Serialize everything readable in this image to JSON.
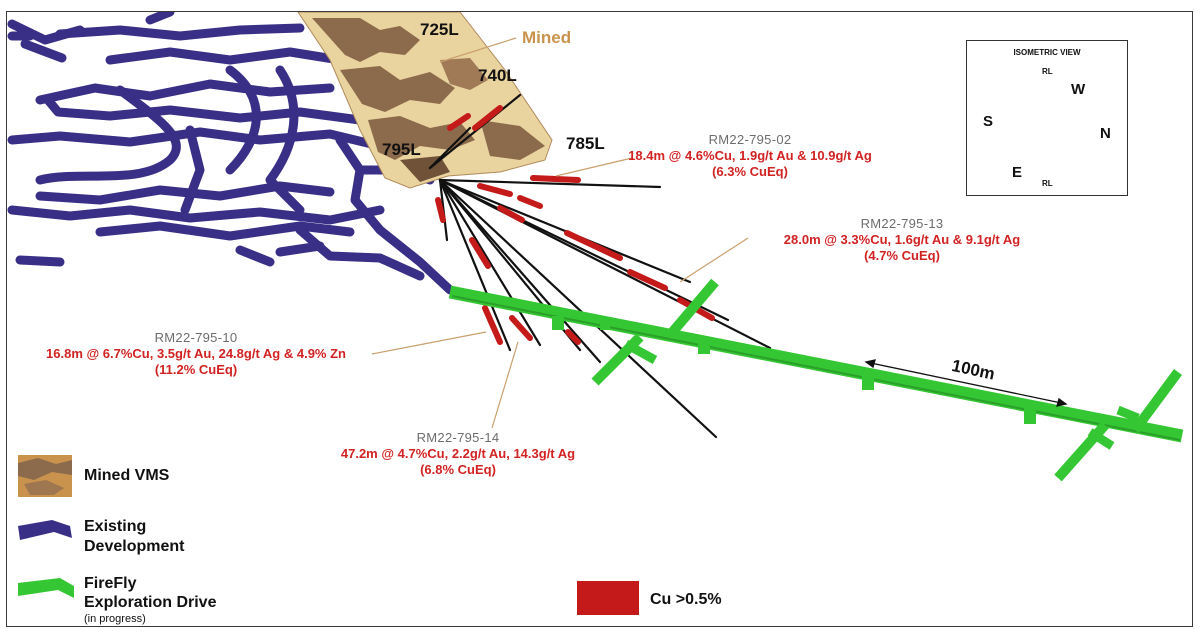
{
  "levels": {
    "l725": "725L",
    "l740": "740L",
    "l785": "785L",
    "l795": "795L"
  },
  "mined_label": "Mined",
  "annotations": {
    "hole_02": {
      "id": "RM22-795-02",
      "result": "18.4m @ 4.6%Cu, 1.9g/t Au & 10.9g/t Ag",
      "cueq": "(6.3% CuEq)"
    },
    "hole_13": {
      "id": "RM22-795-13",
      "result": "28.0m @ 3.3%Cu, 1.6g/t Au & 9.1g/t Ag",
      "cueq": "(4.7% CuEq)"
    },
    "hole_10": {
      "id": "RM22-795-10",
      "result": "16.8m @ 6.7%Cu, 3.5g/t Au, 24.8g/t Ag & 4.9% Zn",
      "cueq": "(11.2% CuEq)"
    },
    "hole_14": {
      "id": "RM22-795-14",
      "result": "47.2m @ 4.7%Cu, 2.2g/t Au, 14.3g/t Ag",
      "cueq": "(6.8% CuEq)"
    }
  },
  "isometric": {
    "title": "ISOMETRIC VIEW",
    "rl_top": "RL",
    "rl_bottom": "RL",
    "w": "W",
    "s": "S",
    "n": "N",
    "e": "E"
  },
  "scale_bar": "100m",
  "legend": {
    "mined_vms": "Mined VMS",
    "existing_line1": "Existing",
    "existing_line2": "Development",
    "firefly_line1": "FireFly",
    "firefly_line2": "Exploration Drive",
    "firefly_sub": "(in progress)",
    "cu": "Cu >0.5%"
  },
  "colors": {
    "development": "#3a2f86",
    "drive": "#35c733",
    "mined_fill": "#e9d39f",
    "mined_dark": "#8c6a4c",
    "cu": "#c41a1a",
    "hole": "#111111",
    "annotation_text": "#d22222"
  }
}
